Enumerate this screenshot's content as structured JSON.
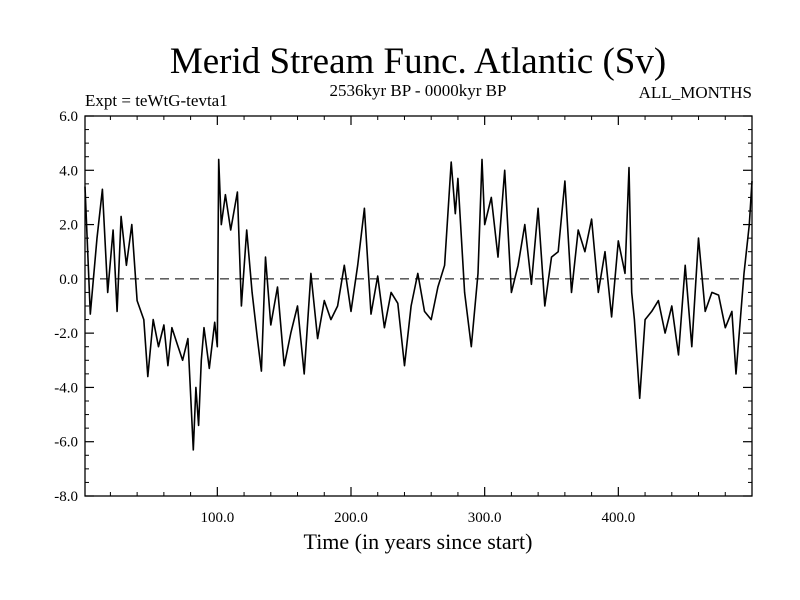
{
  "chart_data": {
    "type": "line",
    "title": "Merid Stream Func. Atlantic (Sv)",
    "subtitle_left": "Expt = teWtG-tevta1",
    "subtitle_center": "2536kyr BP - 0000kyr BP",
    "subtitle_right": "ALL_MONTHS",
    "xlabel": "Time (in years since start)",
    "ylabel": "",
    "xlim": [
      1,
      500
    ],
    "ylim": [
      -8.0,
      6.0
    ],
    "xticks": [
      100,
      200,
      300,
      400
    ],
    "xtick_labels": [
      "100.0",
      "200.0",
      "300.0",
      "400.0"
    ],
    "yticks": [
      6,
      4,
      2,
      0,
      -2,
      -4,
      -6,
      -8
    ],
    "ytick_labels": [
      "6.0",
      "4.0",
      "2.0",
      "0.0",
      "-2.0",
      "-4.0",
      "-6.0",
      "-8.0"
    ],
    "reference_line": {
      "y": 0.0,
      "style": "dashed"
    },
    "series": [
      {
        "name": "Merid Stream Func. Atlantic",
        "x": [
          1,
          5,
          10,
          14,
          18,
          22,
          25,
          28,
          32,
          36,
          40,
          45,
          48,
          52,
          56,
          60,
          63,
          66,
          70,
          74,
          78,
          82,
          84,
          86,
          88,
          90,
          94,
          98,
          100,
          101,
          103,
          106,
          110,
          115,
          118,
          122,
          126,
          130,
          133,
          136,
          140,
          145,
          150,
          155,
          160,
          165,
          170,
          175,
          180,
          185,
          190,
          195,
          200,
          205,
          210,
          215,
          220,
          225,
          230,
          235,
          240,
          245,
          250,
          255,
          260,
          265,
          270,
          275,
          278,
          280,
          285,
          290,
          295,
          298,
          300,
          305,
          310,
          315,
          320,
          325,
          330,
          335,
          340,
          345,
          350,
          355,
          360,
          365,
          370,
          375,
          380,
          385,
          390,
          395,
          400,
          405,
          408,
          410,
          412,
          416,
          420,
          425,
          430,
          435,
          440,
          445,
          450,
          455,
          460,
          465,
          470,
          475,
          480,
          485,
          488,
          490,
          494,
          498,
          500
        ],
        "values": [
          3.4,
          -1.3,
          1.5,
          3.3,
          -0.5,
          1.8,
          -1.2,
          2.3,
          0.5,
          2.0,
          -0.8,
          -1.5,
          -3.6,
          -1.5,
          -2.5,
          -1.7,
          -3.2,
          -1.8,
          -2.4,
          -3.0,
          -2.2,
          -6.3,
          -4.0,
          -5.4,
          -3.0,
          -1.8,
          -3.3,
          -1.6,
          -2.5,
          4.4,
          2.0,
          3.1,
          1.8,
          3.2,
          -1.0,
          1.8,
          -0.5,
          -2.2,
          -3.4,
          0.8,
          -1.7,
          -0.3,
          -3.2,
          -2.0,
          -1.0,
          -3.5,
          0.2,
          -2.2,
          -0.8,
          -1.5,
          -1.0,
          0.5,
          -1.2,
          0.5,
          2.6,
          -1.3,
          0.1,
          -1.8,
          -0.5,
          -0.9,
          -3.2,
          -1.0,
          0.2,
          -1.2,
          -1.5,
          -0.3,
          0.5,
          4.3,
          2.4,
          3.7,
          -0.5,
          -2.5,
          0.2,
          4.4,
          2.0,
          3.0,
          0.8,
          4.0,
          -0.5,
          0.5,
          2.0,
          -0.2,
          2.6,
          -1.0,
          0.8,
          1.0,
          3.6,
          -0.5,
          1.8,
          1.0,
          2.2,
          -0.5,
          1.0,
          -1.4,
          1.4,
          0.2,
          4.1,
          -0.5,
          -1.5,
          -4.4,
          -1.5,
          -1.2,
          -0.8,
          -2.0,
          -1.0,
          -2.8,
          0.5,
          -2.5,
          1.5,
          -1.2,
          -0.5,
          -0.6,
          -1.8,
          -1.2,
          -3.5,
          -2.3,
          0.2,
          2.0,
          3.6
        ]
      }
    ]
  }
}
